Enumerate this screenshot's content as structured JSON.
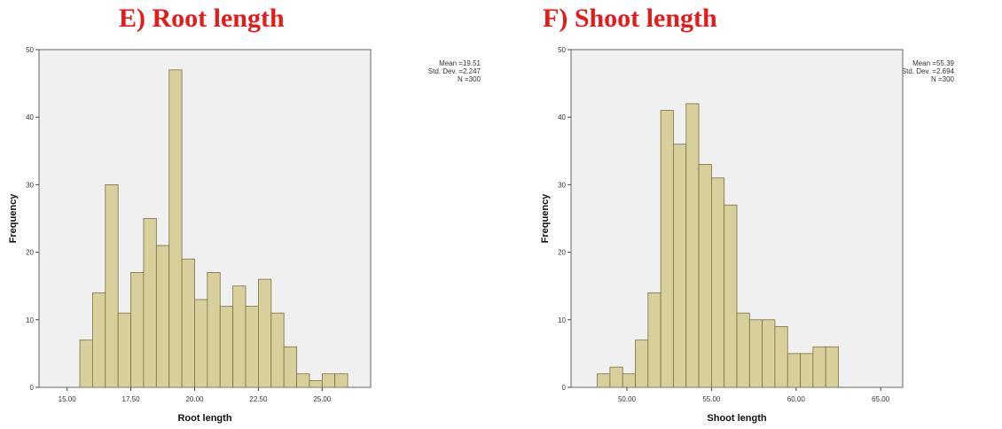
{
  "chart_data": [
    {
      "type": "bar",
      "panel_title": "E) Root length",
      "xlabel": "Root length",
      "ylabel": "Frequency",
      "ylim": [
        0,
        50
      ],
      "xlim": [
        13.9,
        26.9
      ],
      "y_ticks": [
        0,
        10,
        20,
        30,
        40,
        50
      ],
      "x_ticks": [
        15.0,
        17.5,
        20.0,
        22.5,
        25.0
      ],
      "x_tick_labels": [
        "15.00",
        "17.50",
        "20.00",
        "22.50",
        "25.00"
      ],
      "bin_start": 15.5,
      "bin_width": 0.5,
      "values": [
        7,
        14,
        30,
        11,
        17,
        25,
        21,
        47,
        19,
        13,
        17,
        12,
        15,
        12,
        16,
        11,
        6,
        2,
        1,
        2,
        2
      ],
      "stats": {
        "mean": "Mean =19.51",
        "std": "Std. Dev. =2.247",
        "n": "N =300"
      },
      "bar_color": "#d8d09c",
      "plot_bg": "#f0f0f0",
      "grid": false
    },
    {
      "type": "bar",
      "panel_title": "F) Shoot length",
      "xlabel": "Shoot length",
      "ylabel": "Frequency",
      "ylim": [
        0,
        50
      ],
      "xlim": [
        46.7,
        66.3
      ],
      "y_ticks": [
        0,
        10,
        20,
        30,
        40,
        50
      ],
      "x_ticks": [
        50.0,
        55.0,
        60.0,
        65.0
      ],
      "x_tick_labels": [
        "50.00",
        "55.00",
        "60.00",
        "65.00"
      ],
      "bin_start": 48.25,
      "bin_width": 0.75,
      "values": [
        2,
        3,
        2,
        7,
        14,
        41,
        36,
        42,
        33,
        31,
        27,
        11,
        10,
        10,
        9,
        5,
        5,
        6,
        6
      ],
      "stats": {
        "mean": "Mean =55.39",
        "std": "Std. Dev. =2.694",
        "n": "N =300"
      },
      "bar_color": "#d8d09c",
      "plot_bg": "#f0f0f0",
      "grid": false
    }
  ]
}
